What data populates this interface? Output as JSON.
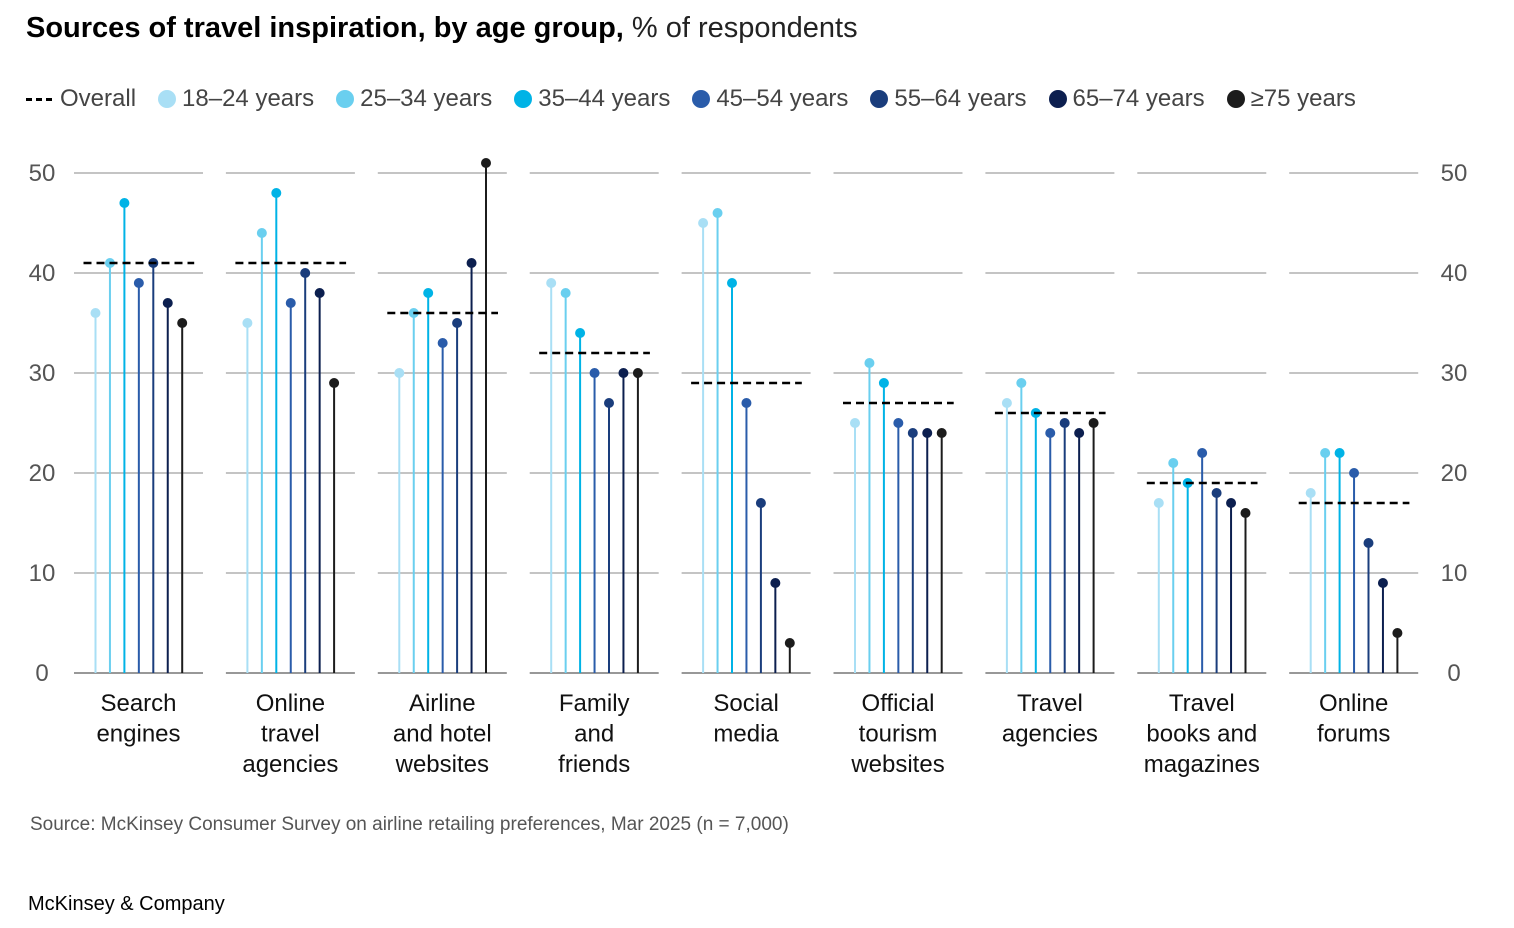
{
  "title": {
    "bold": "Sources of travel inspiration, by age group,",
    "rest": " % of respondents"
  },
  "legend": {
    "overall_label": "Overall",
    "items": [
      {
        "label": "18–24 years",
        "color": "#a9dff5"
      },
      {
        "label": "25–34 years",
        "color": "#6acfef"
      },
      {
        "label": "35–44 years",
        "color": "#00b3e6"
      },
      {
        "label": "45–54 years",
        "color": "#2a5caa"
      },
      {
        "label": "55–64 years",
        "color": "#1a3d7c"
      },
      {
        "label": "65–74 years",
        "color": "#0c1f4f"
      },
      {
        "label": "≥75 years",
        "color": "#1c1c1c"
      }
    ]
  },
  "chart_data": {
    "type": "lollipop",
    "y_ticks": [
      0,
      10,
      20,
      30,
      40,
      50
    ],
    "ylim": [
      0,
      50
    ],
    "grid": true,
    "overall_line_style": "dashed",
    "series_names": [
      "18–24 years",
      "25–34 years",
      "35–44 years",
      "45–54 years",
      "55–64 years",
      "65–74 years",
      "≥75 years"
    ],
    "groups": [
      {
        "label": [
          "Search",
          "engines"
        ],
        "overall": 41,
        "values": [
          36,
          41,
          47,
          39,
          41,
          37,
          35
        ]
      },
      {
        "label": [
          "Online",
          "travel",
          "agencies"
        ],
        "overall": 41,
        "values": [
          35,
          44,
          48,
          37,
          40,
          38,
          29
        ]
      },
      {
        "label": [
          "Airline",
          "and hotel",
          "websites"
        ],
        "overall": 36,
        "values": [
          30,
          36,
          38,
          33,
          35,
          41,
          51
        ]
      },
      {
        "label": [
          "Family",
          "and",
          "friends"
        ],
        "overall": 32,
        "values": [
          39,
          38,
          34,
          30,
          27,
          30,
          30
        ]
      },
      {
        "label": [
          "Social",
          "media"
        ],
        "overall": 29,
        "values": [
          45,
          46,
          39,
          27,
          17,
          9,
          3
        ]
      },
      {
        "label": [
          "Official",
          "tourism",
          "websites"
        ],
        "overall": 27,
        "values": [
          25,
          31,
          29,
          25,
          24,
          24,
          24
        ]
      },
      {
        "label": [
          "Travel",
          "agencies"
        ],
        "overall": 26,
        "values": [
          27,
          29,
          26,
          24,
          25,
          24,
          25
        ]
      },
      {
        "label": [
          "Travel",
          "books and",
          "magazines"
        ],
        "overall": 19,
        "values": [
          17,
          21,
          19,
          22,
          18,
          17,
          16
        ]
      },
      {
        "label": [
          "Online",
          "forums"
        ],
        "overall": 17,
        "values": [
          18,
          22,
          22,
          20,
          13,
          9,
          4
        ]
      }
    ]
  },
  "footer": {
    "source": "Source: McKinsey Consumer Survey on airline retailing preferences, Mar 2025 (n = 7,000)",
    "brand": "McKinsey & Company"
  }
}
